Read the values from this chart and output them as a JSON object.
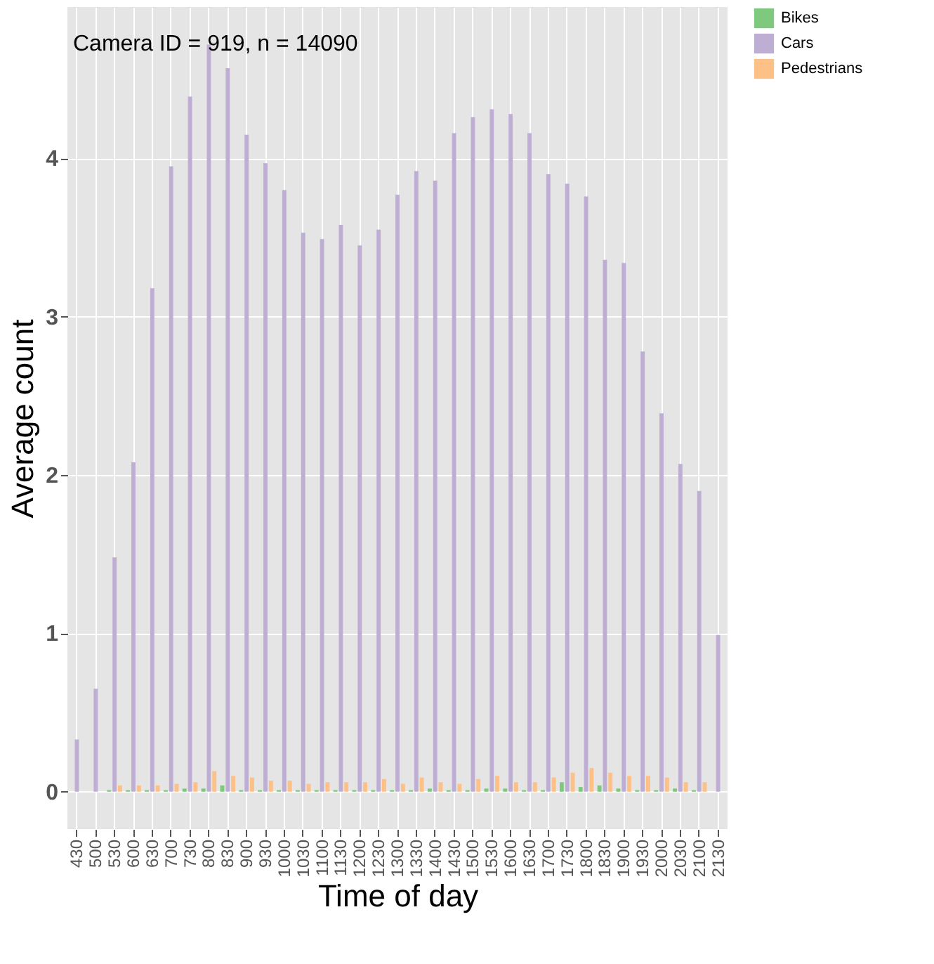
{
  "chart_data": {
    "type": "bar",
    "xlabel": "Time of day",
    "ylabel": "Average count",
    "annotations": [
      "Camera ID = 919, n = 14090"
    ],
    "categories": [
      "430",
      "500",
      "530",
      "600",
      "630",
      "700",
      "730",
      "800",
      "830",
      "900",
      "930",
      "1000",
      "1030",
      "1100",
      "1130",
      "1200",
      "1230",
      "1300",
      "1330",
      "1400",
      "1430",
      "1500",
      "1530",
      "1600",
      "1630",
      "1700",
      "1730",
      "1800",
      "1830",
      "1900",
      "1930",
      "2000",
      "2030",
      "2100",
      "2130"
    ],
    "series": [
      {
        "name": "Bikes",
        "color": "#7fc97f",
        "values": [
          0,
          0,
          0.01,
          0.01,
          0.01,
          0.01,
          0.02,
          0.02,
          0.04,
          0.01,
          0.01,
          0.01,
          0.01,
          0.01,
          0.01,
          0.01,
          0.01,
          0.01,
          0.01,
          0.02,
          0.01,
          0.01,
          0.02,
          0.02,
          0.01,
          0.01,
          0.06,
          0.03,
          0.04,
          0.02,
          0.01,
          0.01,
          0.02,
          0.01,
          0
        ]
      },
      {
        "name": "Cars",
        "color": "#beaed4",
        "values": [
          0.33,
          0.65,
          1.48,
          2.08,
          3.18,
          3.95,
          4.39,
          4.72,
          4.57,
          4.15,
          3.97,
          3.8,
          3.53,
          3.49,
          3.58,
          3.45,
          3.55,
          3.77,
          3.92,
          3.86,
          4.16,
          4.26,
          4.31,
          4.28,
          4.16,
          3.9,
          3.84,
          3.76,
          3.36,
          3.34,
          2.78,
          2.39,
          2.07,
          1.9,
          0.99
        ]
      },
      {
        "name": "Pedestrians",
        "color": "#fdc086",
        "values": [
          0,
          0,
          0.04,
          0.04,
          0.04,
          0.05,
          0.06,
          0.13,
          0.1,
          0.09,
          0.07,
          0.07,
          0.05,
          0.06,
          0.06,
          0.06,
          0.08,
          0.05,
          0.09,
          0.06,
          0.05,
          0.08,
          0.1,
          0.06,
          0.06,
          0.09,
          0.12,
          0.15,
          0.12,
          0.1,
          0.1,
          0.09,
          0.06,
          0.06,
          0
        ]
      }
    ],
    "ylim": [
      -0.236,
      4.956
    ],
    "yticks": [
      0,
      1,
      2,
      3,
      4
    ],
    "grid": true,
    "legend": "right"
  }
}
